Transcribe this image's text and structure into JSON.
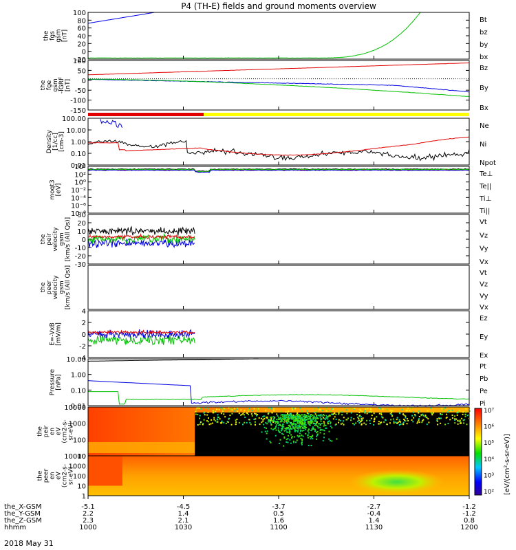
{
  "title": "P4 (TH-E) fields and ground moments overview",
  "date": "2018 May 31",
  "colors": {
    "black": "#000000",
    "red": "#e00000",
    "green": "#00c000",
    "blue": "#0000e0",
    "yellow": "#ffff00"
  },
  "chart_data": {
    "type": "multi-panel time series",
    "time_ticks": [
      "1000",
      "1030",
      "1100",
      "1130",
      "1200"
    ],
    "orbit_rows": [
      {
        "label": "the_X-GSM",
        "values": [
          "-5.1",
          "-4.5",
          "-3.7",
          "-2.7",
          "-1.2"
        ]
      },
      {
        "label": "the_Y-GSM",
        "values": [
          "2.2",
          "1.4",
          "0.5",
          "-0.4",
          "-1.2"
        ]
      },
      {
        "label": "the_Z-GSM",
        "values": [
          "2.3",
          "2.1",
          "1.6",
          "1.4",
          "0.8"
        ]
      },
      {
        "label": "hhmm",
        "values": [
          "1000",
          "1030",
          "1100",
          "1130",
          "1200"
        ]
      }
    ],
    "panels": [
      {
        "id": "fgs",
        "ylabel": [
          "the",
          "fgs",
          "gsm",
          "[nT]"
        ],
        "ylim": [
          -20,
          100
        ],
        "ticks": [
          "100",
          "80",
          "60",
          "40",
          "20",
          "0",
          "-20"
        ],
        "legend": [
          {
            "text": "Bt",
            "color": "#000000"
          },
          {
            "text": "bz",
            "color": "#e00000"
          },
          {
            "text": "by",
            "color": "#00c000"
          },
          {
            "text": "bx",
            "color": "#0000e0"
          }
        ]
      },
      {
        "id": "fge",
        "ylabel": [
          "the",
          "fge",
          "gsm",
          "-IGRF",
          "[nT]"
        ],
        "ylim": [
          -170,
          100
        ],
        "ticks": [
          "100",
          "50",
          "0",
          "-50",
          "-100",
          "-150"
        ],
        "legend": [
          {
            "text": "Bz",
            "color": "#e00000"
          },
          {
            "text": "By",
            "color": "#00c000"
          },
          {
            "text": "Bx",
            "color": "#0000e0"
          }
        ]
      },
      {
        "id": "density",
        "ylabel": [
          "Density",
          "[1/cc]",
          "[cm-3]"
        ],
        "ticks": [
          "100.00",
          "10.00",
          "1.00",
          "0.10",
          "0.01"
        ],
        "legend": [
          {
            "text": "Ne",
            "color": "#e00000"
          },
          {
            "text": "Ni",
            "color": "#000000"
          },
          {
            "text": "Npot",
            "color": "#0000e0"
          }
        ]
      },
      {
        "id": "temp",
        "ylabel": [
          "moqt3",
          "[eV]"
        ],
        "ticks": [
          "10⁴",
          "10²",
          "10⁰",
          "10⁻²",
          "10⁻⁴",
          "10⁻⁶",
          "10⁻⁸"
        ],
        "legend": [
          {
            "text": "Te⊥",
            "color": "#e00000"
          },
          {
            "text": "Te||",
            "color": "#000000"
          },
          {
            "text": "Ti⊥",
            "color": "#0000e0"
          },
          {
            "text": "Ti||",
            "color": "#00c000"
          }
        ]
      },
      {
        "id": "peir",
        "ylabel": [
          "the",
          "peir",
          "velocity",
          "gsm",
          "[km/s (All Qs)]"
        ],
        "ylim": [
          -30,
          30
        ],
        "ticks": [
          "30",
          "20",
          "10",
          "0",
          "-10",
          "-20",
          "-30"
        ],
        "legend": [
          {
            "text": "Vt",
            "color": "#000000"
          },
          {
            "text": "Vz",
            "color": "#e00000"
          },
          {
            "text": "Vy",
            "color": "#00c000"
          },
          {
            "text": "Vx",
            "color": "#0000e0"
          }
        ]
      },
      {
        "id": "peer",
        "ylabel": [
          "the",
          "peer",
          "velocity",
          "gsm",
          "[km/s (All Qs)]"
        ],
        "ticks": [],
        "legend": [
          {
            "text": "Vt",
            "color": "#000000"
          },
          {
            "text": "Vz",
            "color": "#e00000"
          },
          {
            "text": "Vy",
            "color": "#00c000"
          },
          {
            "text": "Vx",
            "color": "#0000e0"
          }
        ]
      },
      {
        "id": "efield",
        "ylabel": [
          "E=-VxB",
          "[mV/m]"
        ],
        "ylim": [
          -4,
          4
        ],
        "ticks": [
          "4",
          "2",
          "0",
          "-2",
          "-4"
        ],
        "legend": [
          {
            "text": "Ez",
            "color": "#e00000"
          },
          {
            "text": "Ey",
            "color": "#00c000"
          },
          {
            "text": "Ex",
            "color": "#0000e0"
          }
        ]
      },
      {
        "id": "pressure",
        "ylabel": [
          "Pressure",
          "[nPa]"
        ],
        "ticks": [
          "10.00",
          "1.00",
          "0.10",
          "0.01"
        ],
        "legend": [
          {
            "text": "Pt",
            "color": "#000000"
          },
          {
            "text": "Pb",
            "color": "#e00000"
          },
          {
            "text": "Pe",
            "color": "#00c000"
          },
          {
            "text": "Pi",
            "color": "#0000e0"
          }
        ]
      },
      {
        "id": "peir_spec",
        "ylabel": [
          "the",
          "peir",
          "en",
          "eV",
          "(cm2-s-",
          "sr-eV)"
        ],
        "ticks": [
          "10000",
          "1000",
          "100",
          "10"
        ]
      },
      {
        "id": "peer_spec",
        "ylabel": [
          "the",
          "peer",
          "en",
          "eV",
          "(cm2-s-",
          "sr-eV)"
        ],
        "ticks": [
          "10000",
          "1000",
          "100",
          "10",
          "1"
        ]
      }
    ],
    "colorbar": {
      "label": "[eV/(cm²-s-sr-eV)]",
      "ticks": [
        "10⁷",
        "10⁶",
        "10⁵",
        "10⁴",
        "10³",
        "10²"
      ]
    }
  }
}
